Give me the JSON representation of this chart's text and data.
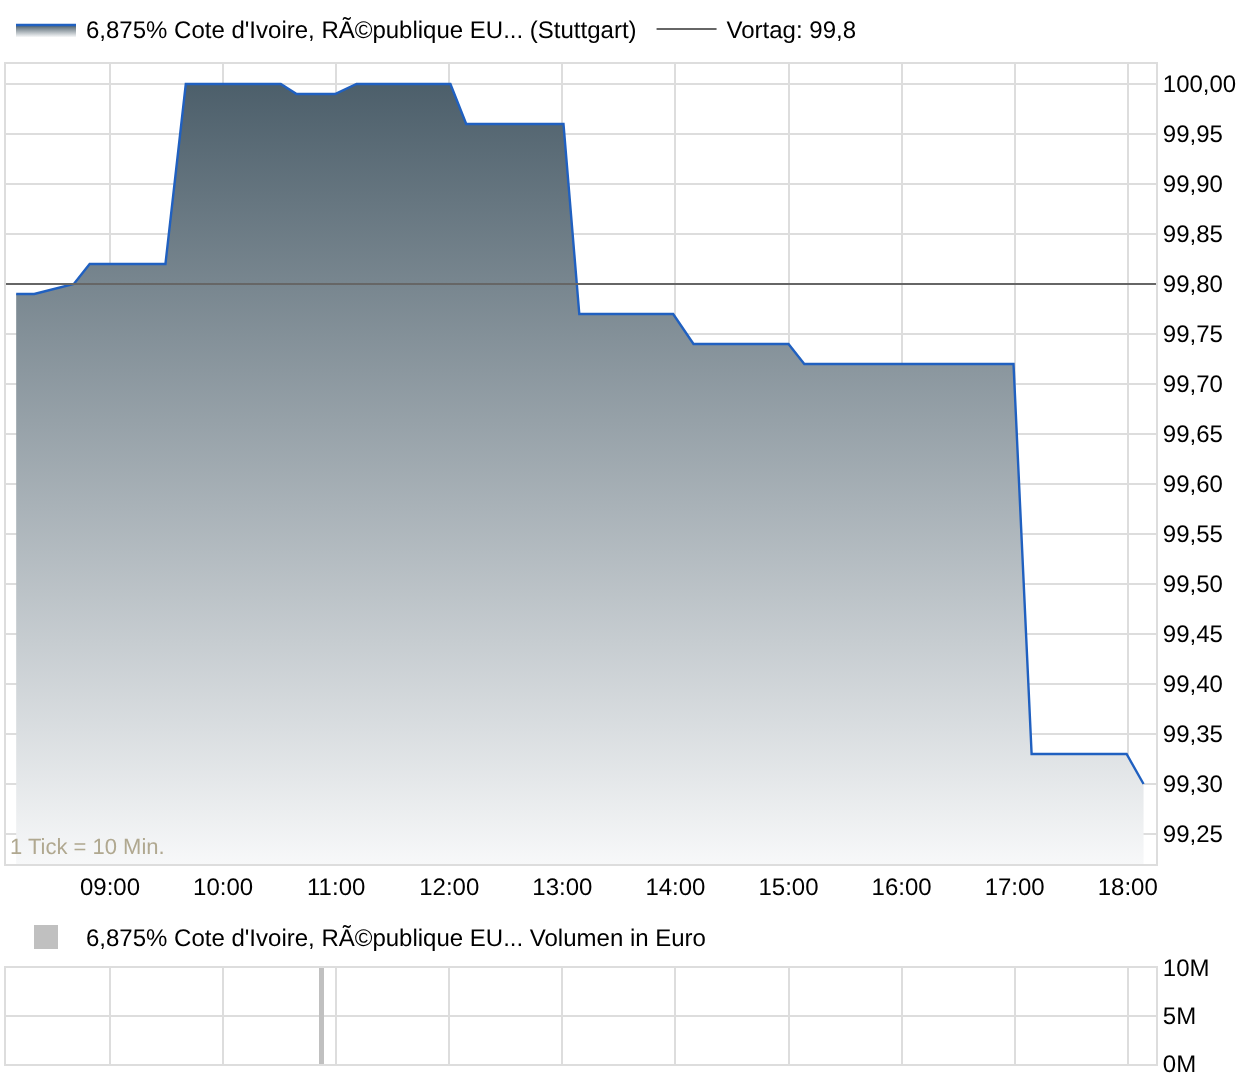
{
  "chart_data": [
    {
      "type": "area",
      "xlim": [
        8.08,
        18.25
      ],
      "ylim": [
        99.22,
        100.02
      ],
      "xticks": [
        {
          "value": 9,
          "label": "09:00"
        },
        {
          "value": 10,
          "label": "10:00"
        },
        {
          "value": 11,
          "label": "11:00"
        },
        {
          "value": 12,
          "label": "12:00"
        },
        {
          "value": 13,
          "label": "13:00"
        },
        {
          "value": 14,
          "label": "14:00"
        },
        {
          "value": 15,
          "label": "15:00"
        },
        {
          "value": 16,
          "label": "16:00"
        },
        {
          "value": 17,
          "label": "17:00"
        },
        {
          "value": 18,
          "label": "18:00"
        }
      ],
      "yticks": [
        {
          "value": 99.25,
          "label": "99,25"
        },
        {
          "value": 99.3,
          "label": "99,30"
        },
        {
          "value": 99.35,
          "label": "99,35"
        },
        {
          "value": 99.4,
          "label": "99,40"
        },
        {
          "value": 99.45,
          "label": "99,45"
        },
        {
          "value": 99.5,
          "label": "99,50"
        },
        {
          "value": 99.55,
          "label": "99,55"
        },
        {
          "value": 99.6,
          "label": "99,60"
        },
        {
          "value": 99.65,
          "label": "99,65"
        },
        {
          "value": 99.7,
          "label": "99,70"
        },
        {
          "value": 99.75,
          "label": "99,75"
        },
        {
          "value": 99.8,
          "label": "99,80"
        },
        {
          "value": 99.85,
          "label": "99,85"
        },
        {
          "value": 99.9,
          "label": "99,90"
        },
        {
          "value": 99.95,
          "label": "99,95"
        },
        {
          "value": 100,
          "label": "100,00"
        }
      ],
      "x": [
        8.17,
        8.33,
        8.68,
        8.82,
        9.49,
        9.67,
        10.51,
        10.65,
        10.99,
        11.18,
        12.01,
        12.15,
        13.01,
        13.15,
        13.98,
        14.16,
        15.0,
        15.14,
        16.99,
        17.15,
        17.99,
        18.14
      ],
      "series": [
        {
          "name": "6,875% Cote d'Ivoire, RÃ©publique EU... (Stuttgart)",
          "color": "#2060c0",
          "values": [
            99.79,
            99.79,
            99.8,
            99.82,
            99.82,
            100.0,
            100.0,
            99.99,
            99.99,
            100.0,
            100.0,
            99.96,
            99.96,
            99.77,
            99.77,
            99.74,
            99.74,
            99.72,
            99.72,
            99.33,
            99.33,
            99.3
          ]
        }
      ],
      "ref_lines": [
        {
          "axis": "y",
          "value": 99.8,
          "label": "Vortag: 99,8",
          "color": "#666666"
        }
      ],
      "annotations": [
        "1 Tick = 10 Min."
      ],
      "grid": true,
      "legend": "top left"
    },
    {
      "type": "bar",
      "xlim": [
        8.08,
        18.25
      ],
      "ylim": [
        0,
        10000000
      ],
      "xticks": [
        {
          "value": 9,
          "label": null
        },
        {
          "value": 10,
          "label": null
        },
        {
          "value": 11,
          "label": null
        },
        {
          "value": 12,
          "label": null
        },
        {
          "value": 13,
          "label": null
        },
        {
          "value": 14,
          "label": null
        },
        {
          "value": 15,
          "label": null
        },
        {
          "value": 16,
          "label": null
        },
        {
          "value": 17,
          "label": null
        },
        {
          "value": 18,
          "label": null
        }
      ],
      "yticks": [
        {
          "value": 0,
          "label": "0M"
        },
        {
          "value": 5000000,
          "label": "5M"
        },
        {
          "value": 10000000,
          "label": "10M"
        }
      ],
      "x": [
        10.87
      ],
      "series": [
        {
          "name": "6,875% Cote d'Ivoire, RÃ©publique EU... Volumen in Euro",
          "color": "#c0c0c0",
          "values": [
            10000000
          ]
        }
      ],
      "tick_labels": "y",
      "grid": true,
      "legend": "top left"
    }
  ]
}
